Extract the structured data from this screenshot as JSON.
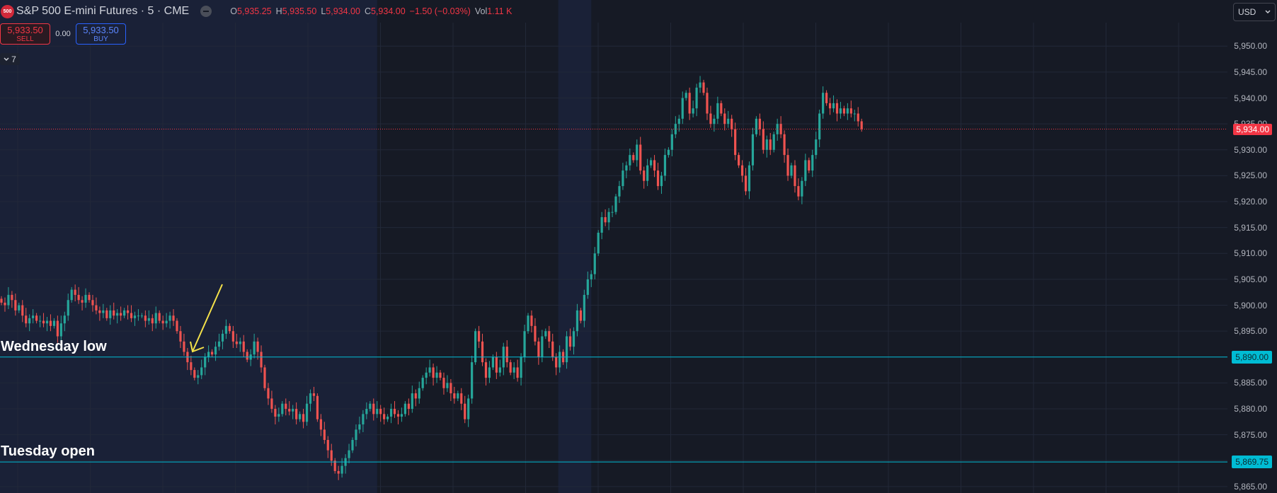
{
  "header": {
    "symbol_icon": "500",
    "symbol_title": "S&P 500 E-mini Futures · 5 · CME",
    "ohlc": {
      "o_label": "O",
      "o_value": "5,935.25",
      "h_label": "H",
      "h_value": "5,935.50",
      "l_label": "L",
      "l_value": "5,934.00",
      "c_label": "C",
      "c_value": "5,934.00",
      "change": "−1.50 (−0.03%)",
      "vol_label": "Vol",
      "vol_value": "1.11 K"
    }
  },
  "trade": {
    "sell_price": "5,933.50",
    "sell_label": "SELL",
    "spread": "0.00",
    "buy_price": "5,933.50",
    "buy_label": "BUY"
  },
  "collapse": {
    "icon": "chevron-down-icon",
    "count": "7"
  },
  "currency": {
    "label": "USD",
    "icon": "chevron-down-icon"
  },
  "colors": {
    "background": "#161a25",
    "session_shade": "#1a2137",
    "grid": "#222838",
    "up": "#26a69a",
    "down": "#ef5350",
    "level_line": "#00bcd4",
    "current_price": "#f23645",
    "arrow": "#f5e24a"
  },
  "chart_data": {
    "type": "candlestick",
    "series_name": "S&P 500 E-mini Futures",
    "interval": "5",
    "ylim": [
      5863,
      5956
    ],
    "y_ticks": [
      "5,950.00",
      "5,945.00",
      "5,940.00",
      "5,935.00",
      "5,930.00",
      "5,925.00",
      "5,920.00",
      "5,915.00",
      "5,910.00",
      "5,905.00",
      "5,900.00",
      "5,895.00",
      "5,890.00",
      "5,885.00",
      "5,880.00",
      "5,875.00",
      "5,870.00",
      "5,865.00"
    ],
    "y_tick_values": [
      5950,
      5945,
      5940,
      5935,
      5930,
      5925,
      5920,
      5915,
      5910,
      5905,
      5900,
      5895,
      5890,
      5885,
      5880,
      5875,
      5870,
      5865
    ],
    "grid": true,
    "current_price": {
      "value": 5934.0,
      "label": "5,934.00"
    },
    "levels": [
      {
        "name": "Wednesday low",
        "value": 5890.0,
        "label": "5,890.00"
      },
      {
        "name": "Tuesday open",
        "value": 5869.75,
        "label": "5,869.75"
      }
    ],
    "closes_path": [
      5900.5,
      5900,
      5902,
      5901,
      5899,
      5900,
      5898,
      5896.5,
      5897.5,
      5898,
      5897,
      5897,
      5896.5,
      5897,
      5896,
      5897,
      5894,
      5896.5,
      5898,
      5901,
      5903,
      5902,
      5901,
      5900.5,
      5902,
      5901,
      5900,
      5899,
      5898.5,
      5899,
      5897.5,
      5899,
      5898,
      5898.5,
      5898,
      5899,
      5898.5,
      5897.5,
      5898,
      5898,
      5898,
      5897,
      5897.5,
      5896.5,
      5898.5,
      5897,
      5896.5,
      5897,
      5898,
      5897,
      5895,
      5893,
      5891,
      5889,
      5887.5,
      5886,
      5886.5,
      5888,
      5890,
      5891,
      5890.5,
      5892,
      5893,
      5894.5,
      5896,
      5895,
      5893,
      5892.5,
      5893,
      5891,
      5889.5,
      5890.5,
      5893,
      5891,
      5888,
      5884,
      5882,
      5880,
      5878.5,
      5879,
      5881,
      5880,
      5879.5,
      5880,
      5878,
      5879,
      5877.5,
      5881,
      5883,
      5882.5,
      5878,
      5876,
      5874,
      5872,
      5870,
      5868,
      5867.5,
      5869,
      5870.5,
      5872,
      5874,
      5876,
      5877,
      5879,
      5880,
      5881,
      5879,
      5880,
      5879,
      5878,
      5878.5,
      5880,
      5879,
      5878.5,
      5879,
      5881,
      5880,
      5883,
      5882,
      5884,
      5886,
      5887,
      5888,
      5886,
      5887,
      5886,
      5884,
      5885,
      5883,
      5882,
      5883,
      5881,
      5878,
      5882,
      5889,
      5895,
      5893,
      5889,
      5886,
      5888,
      5890,
      5887,
      5888,
      5892,
      5889,
      5887,
      5888,
      5886,
      5890,
      5895,
      5898,
      5896,
      5893,
      5890,
      5894,
      5895,
      5893,
      5890,
      5888,
      5891,
      5889,
      5894,
      5892,
      5895,
      5899,
      5897,
      5902,
      5905,
      5906,
      5910,
      5914,
      5917,
      5916,
      5918,
      5918,
      5921,
      5923,
      5926,
      5927,
      5929,
      5928,
      5931,
      5926,
      5924,
      5927,
      5928,
      5926,
      5923,
      5925,
      5929,
      5930,
      5933,
      5935,
      5936,
      5940,
      5941,
      5937,
      5938,
      5942,
      5943,
      5941,
      5937,
      5935,
      5936,
      5939,
      5937,
      5935,
      5936,
      5934,
      5929,
      5927,
      5925,
      5922,
      5927,
      5933,
      5936,
      5934,
      5930,
      5932,
      5930,
      5933,
      5935,
      5933,
      5929,
      5925,
      5927,
      5923,
      5921,
      5924,
      5928,
      5926,
      5929,
      5932,
      5937,
      5941,
      5939,
      5938,
      5939,
      5937,
      5938,
      5937,
      5938,
      5937,
      5937,
      5935.5,
      5934
    ],
    "session_shading": [
      {
        "from_bar": 0,
        "to_bar": 107,
        "label": ""
      },
      {
        "from_bar": 159,
        "to_bar": 168,
        "label": ""
      }
    ]
  }
}
